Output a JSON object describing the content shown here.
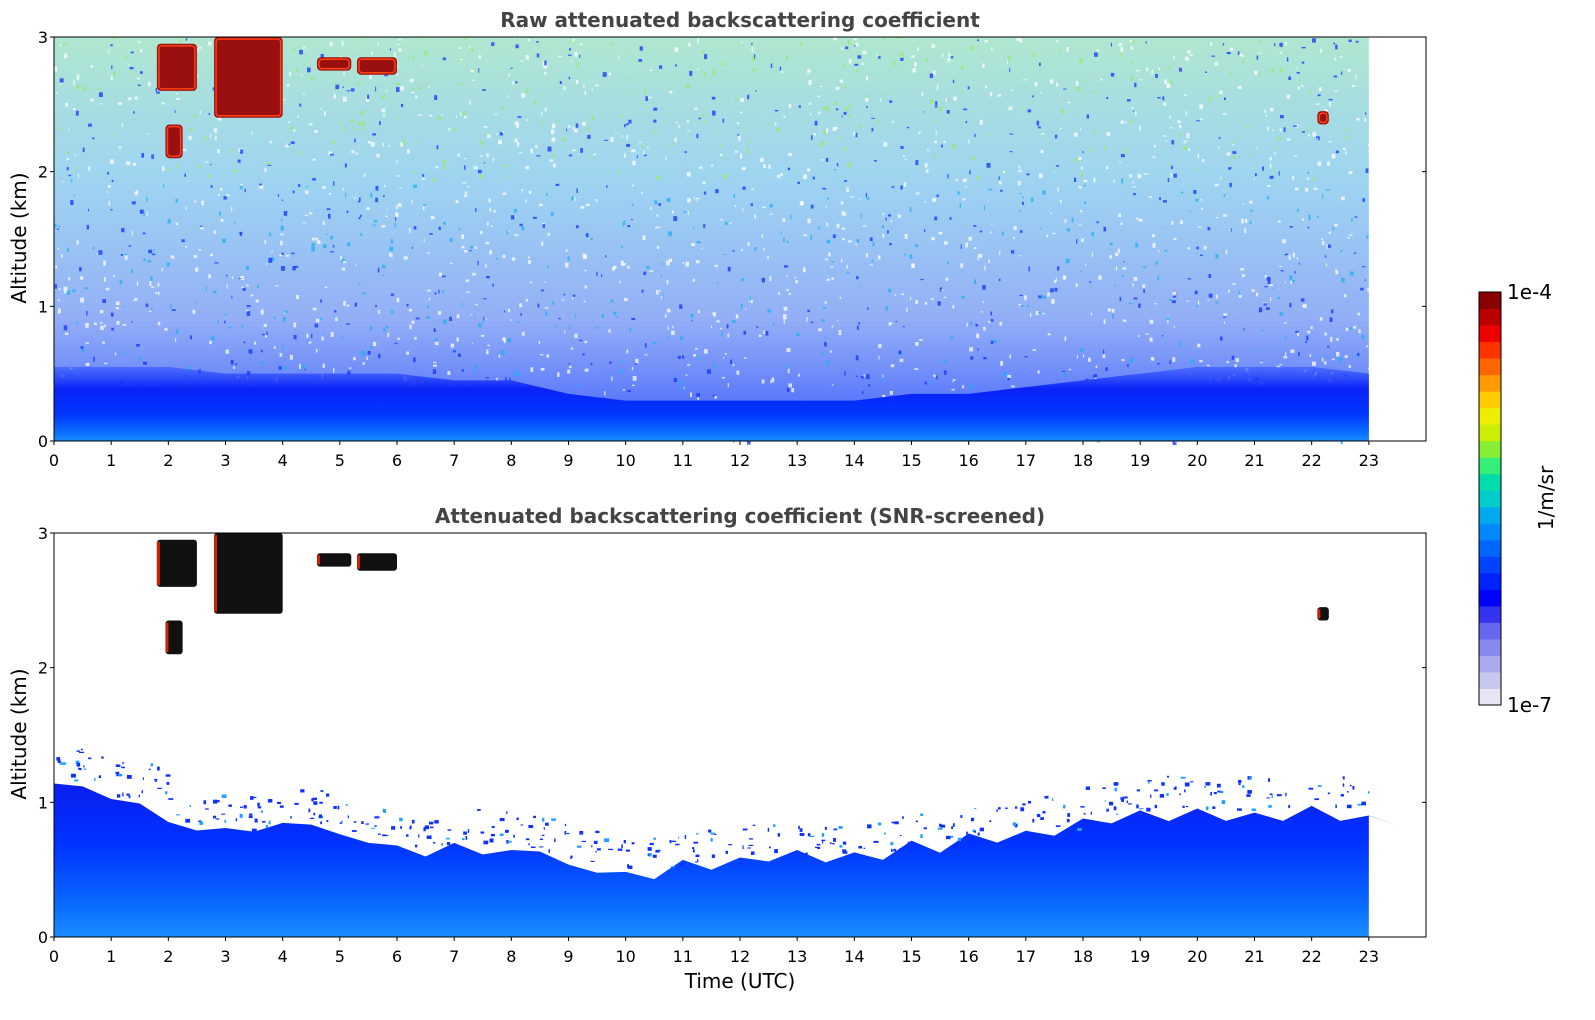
{
  "chart_data": [
    {
      "type": "heatmap",
      "title": "Raw attenuated backscattering coefficient",
      "xlabel": "",
      "ylabel": "Altitude (km)",
      "xlim": [
        0,
        24
      ],
      "ylim": [
        0,
        3
      ],
      "x_ticks": [
        "0",
        "1",
        "2",
        "3",
        "4",
        "5",
        "6",
        "7",
        "8",
        "9",
        "10",
        "11",
        "12",
        "13",
        "14",
        "15",
        "16",
        "17",
        "18",
        "19",
        "20",
        "21",
        "22",
        "23"
      ],
      "y_ticks": [
        "0",
        "1",
        "2",
        "3"
      ],
      "data_end_x": 23,
      "grid": false,
      "layers": [
        {
          "name": "boundary layer",
          "x": [
            0,
            23
          ],
          "y_top_by_hour": [
            0.55,
            0.55,
            0.55,
            0.5,
            0.5,
            0.5,
            0.5,
            0.45,
            0.45,
            0.35,
            0.3,
            0.3,
            0.3,
            0.3,
            0.3,
            0.35,
            0.35,
            0.4,
            0.45,
            0.5,
            0.55,
            0.55,
            0.55,
            0.5
          ],
          "level": "1e-6"
        }
      ],
      "clouds": [
        {
          "x": [
            1.8,
            2.5
          ],
          "y": [
            2.6,
            2.95
          ],
          "level": "1e-4"
        },
        {
          "x": [
            1.95,
            2.25
          ],
          "y": [
            2.1,
            2.35
          ],
          "level": "1e-4"
        },
        {
          "x": [
            2.8,
            4.0
          ],
          "y": [
            2.4,
            3.0
          ],
          "level": "1e-4"
        },
        {
          "x": [
            4.6,
            5.2
          ],
          "y": [
            2.75,
            2.85
          ],
          "level": "1e-4"
        },
        {
          "x": [
            5.3,
            6.0
          ],
          "y": [
            2.72,
            2.85
          ],
          "level": "1e-4"
        },
        {
          "x": [
            22.1,
            22.3
          ],
          "y": [
            2.35,
            2.45
          ],
          "level": "1e-4"
        }
      ]
    },
    {
      "type": "heatmap",
      "title": "Attenuated backscattering coefficient (SNR-screened)",
      "xlabel": "Time (UTC)",
      "ylabel": "Altitude (km)",
      "xlim": [
        0,
        24
      ],
      "ylim": [
        0,
        3
      ],
      "x_ticks": [
        "0",
        "1",
        "2",
        "3",
        "4",
        "5",
        "6",
        "7",
        "8",
        "9",
        "10",
        "11",
        "12",
        "13",
        "14",
        "15",
        "16",
        "17",
        "18",
        "19",
        "20",
        "21",
        "22",
        "23"
      ],
      "y_ticks": [
        "0",
        "1",
        "2",
        "3"
      ],
      "data_end_x": 23,
      "grid": false,
      "screened_top_km_by_hour": [
        1.15,
        1.05,
        0.85,
        0.8,
        0.85,
        0.75,
        0.65,
        0.7,
        0.65,
        0.55,
        0.5,
        0.55,
        0.6,
        0.62,
        0.65,
        0.7,
        0.75,
        0.8,
        0.9,
        0.95,
        0.95,
        0.95,
        0.95,
        0.9
      ],
      "clouds": [
        {
          "x": [
            1.8,
            2.5
          ],
          "y": [
            2.6,
            2.95
          ]
        },
        {
          "x": [
            1.95,
            2.25
          ],
          "y": [
            2.1,
            2.35
          ]
        },
        {
          "x": [
            2.8,
            4.0
          ],
          "y": [
            2.4,
            3.0
          ]
        },
        {
          "x": [
            4.6,
            5.2
          ],
          "y": [
            2.75,
            2.85
          ]
        },
        {
          "x": [
            5.3,
            6.0
          ],
          "y": [
            2.72,
            2.85
          ]
        },
        {
          "x": [
            22.1,
            22.3
          ],
          "y": [
            2.35,
            2.45
          ]
        }
      ]
    }
  ],
  "colorbar": {
    "label": "1/m/sr",
    "max_label": "1e-4",
    "min_label": "1e-7",
    "colors": [
      "#e6e6f5",
      "#c8c8ef",
      "#aaaaee",
      "#8888ee",
      "#6666ee",
      "#3333f0",
      "#0000ff",
      "#0022ff",
      "#0044ff",
      "#0066ff",
      "#0088ff",
      "#00aaee",
      "#00cccc",
      "#00ddaa",
      "#33ee77",
      "#88ee33",
      "#ccee00",
      "#eeee00",
      "#ffcc00",
      "#ff9900",
      "#ff6600",
      "#ff3300",
      "#ee0000",
      "#bb0000",
      "#880000"
    ]
  }
}
